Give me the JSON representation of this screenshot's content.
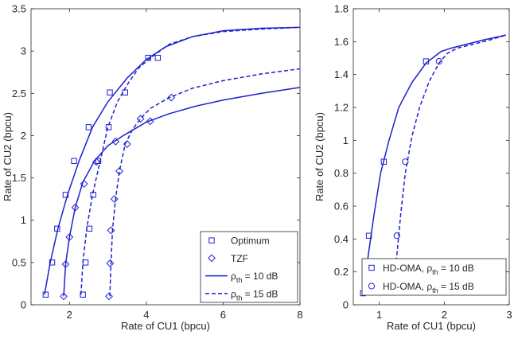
{
  "colors": {
    "series": "#1f1fd0",
    "axis": "#262626",
    "grid": "#ffffff"
  },
  "chart_data": [
    {
      "id": "left",
      "type": "line",
      "xlabel": "Rate of CU1 (bpcu)",
      "ylabel": "Rate of CU2 (bpcu)",
      "xlim": [
        1,
        8
      ],
      "ylim": [
        0,
        3.5
      ],
      "xticks": [
        2,
        4,
        6,
        8
      ],
      "yticks": [
        0,
        0.5,
        1,
        1.5,
        2,
        2.5,
        3,
        3.5
      ],
      "xtick_labels": [
        "2",
        "4",
        "6",
        "8"
      ],
      "ytick_labels": [
        "0",
        "0.5",
        "1",
        "1.5",
        "2",
        "2.5",
        "3",
        "3.5"
      ],
      "grid": false,
      "legend_position": "bottom-right",
      "legend": [
        {
          "label": "Optimum",
          "marker": "square",
          "line": "none"
        },
        {
          "label": "TZF",
          "marker": "diamond",
          "line": "none"
        },
        {
          "label_prefix": "ρ",
          "label_sub": "th",
          "label_suffix": " = 10 dB",
          "marker": "none",
          "line": "solid"
        },
        {
          "label_prefix": "ρ",
          "label_sub": "th",
          "label_suffix": " = 15 dB",
          "marker": "none",
          "line": "dashed"
        }
      ],
      "series": [
        {
          "style": "solid",
          "x": [
            1.35,
            1.5,
            1.7,
            1.95,
            2.25,
            2.6,
            3.0,
            3.5,
            4.0,
            4.5,
            5.2,
            6.0,
            7.0,
            8.0
          ],
          "y": [
            0.12,
            0.5,
            0.9,
            1.3,
            1.7,
            2.1,
            2.4,
            2.68,
            2.9,
            3.05,
            3.17,
            3.24,
            3.27,
            3.28
          ]
        },
        {
          "style": "dashed",
          "x": [
            2.3,
            2.35,
            2.45,
            2.6,
            2.8,
            3.0,
            3.25,
            3.5,
            3.8,
            4.2,
            4.6,
            5.2,
            6.0,
            7.0,
            8.0
          ],
          "y": [
            0.12,
            0.5,
            0.9,
            1.3,
            1.7,
            2.1,
            2.4,
            2.6,
            2.8,
            2.95,
            3.08,
            3.17,
            3.23,
            3.26,
            3.28
          ]
        },
        {
          "style": "solid",
          "x": [
            1.85,
            1.9,
            2.0,
            2.15,
            2.35,
            2.65,
            3.0,
            3.4,
            4.0,
            4.6,
            5.3,
            6.0,
            7.0,
            8.0
          ],
          "y": [
            0.1,
            0.48,
            0.8,
            1.15,
            1.45,
            1.7,
            1.88,
            2.0,
            2.16,
            2.26,
            2.35,
            2.42,
            2.5,
            2.57
          ]
        },
        {
          "style": "dashed",
          "x": [
            3.05,
            3.08,
            3.12,
            3.2,
            3.3,
            3.45,
            3.65,
            3.85,
            4.1,
            4.6,
            5.2,
            6.0,
            7.0,
            8.0
          ],
          "y": [
            0.1,
            0.48,
            0.88,
            1.25,
            1.58,
            1.9,
            2.08,
            2.2,
            2.32,
            2.45,
            2.56,
            2.65,
            2.73,
            2.79
          ]
        }
      ],
      "markers": [
        {
          "shape": "square",
          "x": [
            1.38,
            1.55,
            1.68,
            1.9,
            2.12,
            2.5,
            3.05,
            4.05
          ],
          "y": [
            0.12,
            0.5,
            0.9,
            1.3,
            1.7,
            2.1,
            2.51,
            2.92
          ]
        },
        {
          "shape": "square",
          "x": [
            2.35,
            2.42,
            2.52,
            2.62,
            2.75,
            3.02,
            3.45,
            4.3
          ],
          "y": [
            0.12,
            0.5,
            0.9,
            1.3,
            1.7,
            2.1,
            2.51,
            2.92
          ]
        },
        {
          "shape": "diamond",
          "x": [
            1.85,
            1.9,
            2.0,
            2.15,
            2.38,
            2.7,
            3.2,
            4.1
          ],
          "y": [
            0.1,
            0.48,
            0.8,
            1.15,
            1.43,
            1.69,
            1.93,
            2.17
          ]
        },
        {
          "shape": "diamond",
          "x": [
            3.03,
            3.06,
            3.08,
            3.17,
            3.3,
            3.5,
            3.85,
            4.65
          ],
          "y": [
            0.1,
            0.49,
            0.88,
            1.25,
            1.58,
            1.9,
            2.2,
            2.45
          ]
        }
      ]
    },
    {
      "id": "right",
      "type": "line",
      "xlabel": "Rate of CU1 (bpcu)",
      "ylabel": "Rate of CU2 (bpcu)",
      "xlim": [
        0.6,
        3
      ],
      "ylim": [
        0,
        1.8
      ],
      "xticks": [
        1,
        2,
        3
      ],
      "yticks": [
        0,
        0.2,
        0.4,
        0.6,
        0.8,
        1,
        1.2,
        1.4,
        1.6,
        1.8
      ],
      "xtick_labels": [
        "1",
        "2",
        "3"
      ],
      "ytick_labels": [
        "0",
        "0.2",
        "0.4",
        "0.6",
        "0.8",
        "1",
        "1.2",
        "1.4",
        "1.6",
        "1.8"
      ],
      "grid": false,
      "legend_position": "bottom-right",
      "legend": [
        {
          "label_prefix": "HD-OMA, ρ",
          "label_sub": "th",
          "label_suffix": " = 10 dB",
          "marker": "square",
          "line": "none"
        },
        {
          "label_prefix": "HD-OMA, ρ",
          "label_sub": "th",
          "label_suffix": " = 15 dB",
          "marker": "circle",
          "line": "none"
        }
      ],
      "series": [
        {
          "style": "solid",
          "x": [
            0.76,
            0.83,
            0.92,
            1.02,
            1.15,
            1.3,
            1.5,
            1.72,
            1.95,
            2.1,
            2.3,
            2.6,
            2.95
          ],
          "y": [
            0.07,
            0.3,
            0.55,
            0.8,
            1.0,
            1.2,
            1.35,
            1.47,
            1.54,
            1.56,
            1.58,
            1.61,
            1.64
          ]
        },
        {
          "style": "dashed",
          "x": [
            1.22,
            1.27,
            1.33,
            1.4,
            1.5,
            1.62,
            1.77,
            1.92,
            2.05,
            2.2,
            2.4,
            2.7,
            2.95
          ],
          "y": [
            0.07,
            0.3,
            0.55,
            0.8,
            1.02,
            1.2,
            1.36,
            1.47,
            1.53,
            1.56,
            1.58,
            1.61,
            1.64
          ]
        }
      ],
      "markers": [
        {
          "shape": "square",
          "x": [
            0.75,
            0.84,
            1.07,
            1.72
          ],
          "y": [
            0.07,
            0.42,
            0.87,
            1.48
          ]
        },
        {
          "shape": "circle",
          "x": [
            1.27,
            1.4,
            1.92
          ],
          "y": [
            0.42,
            0.87,
            1.48
          ]
        }
      ]
    }
  ]
}
